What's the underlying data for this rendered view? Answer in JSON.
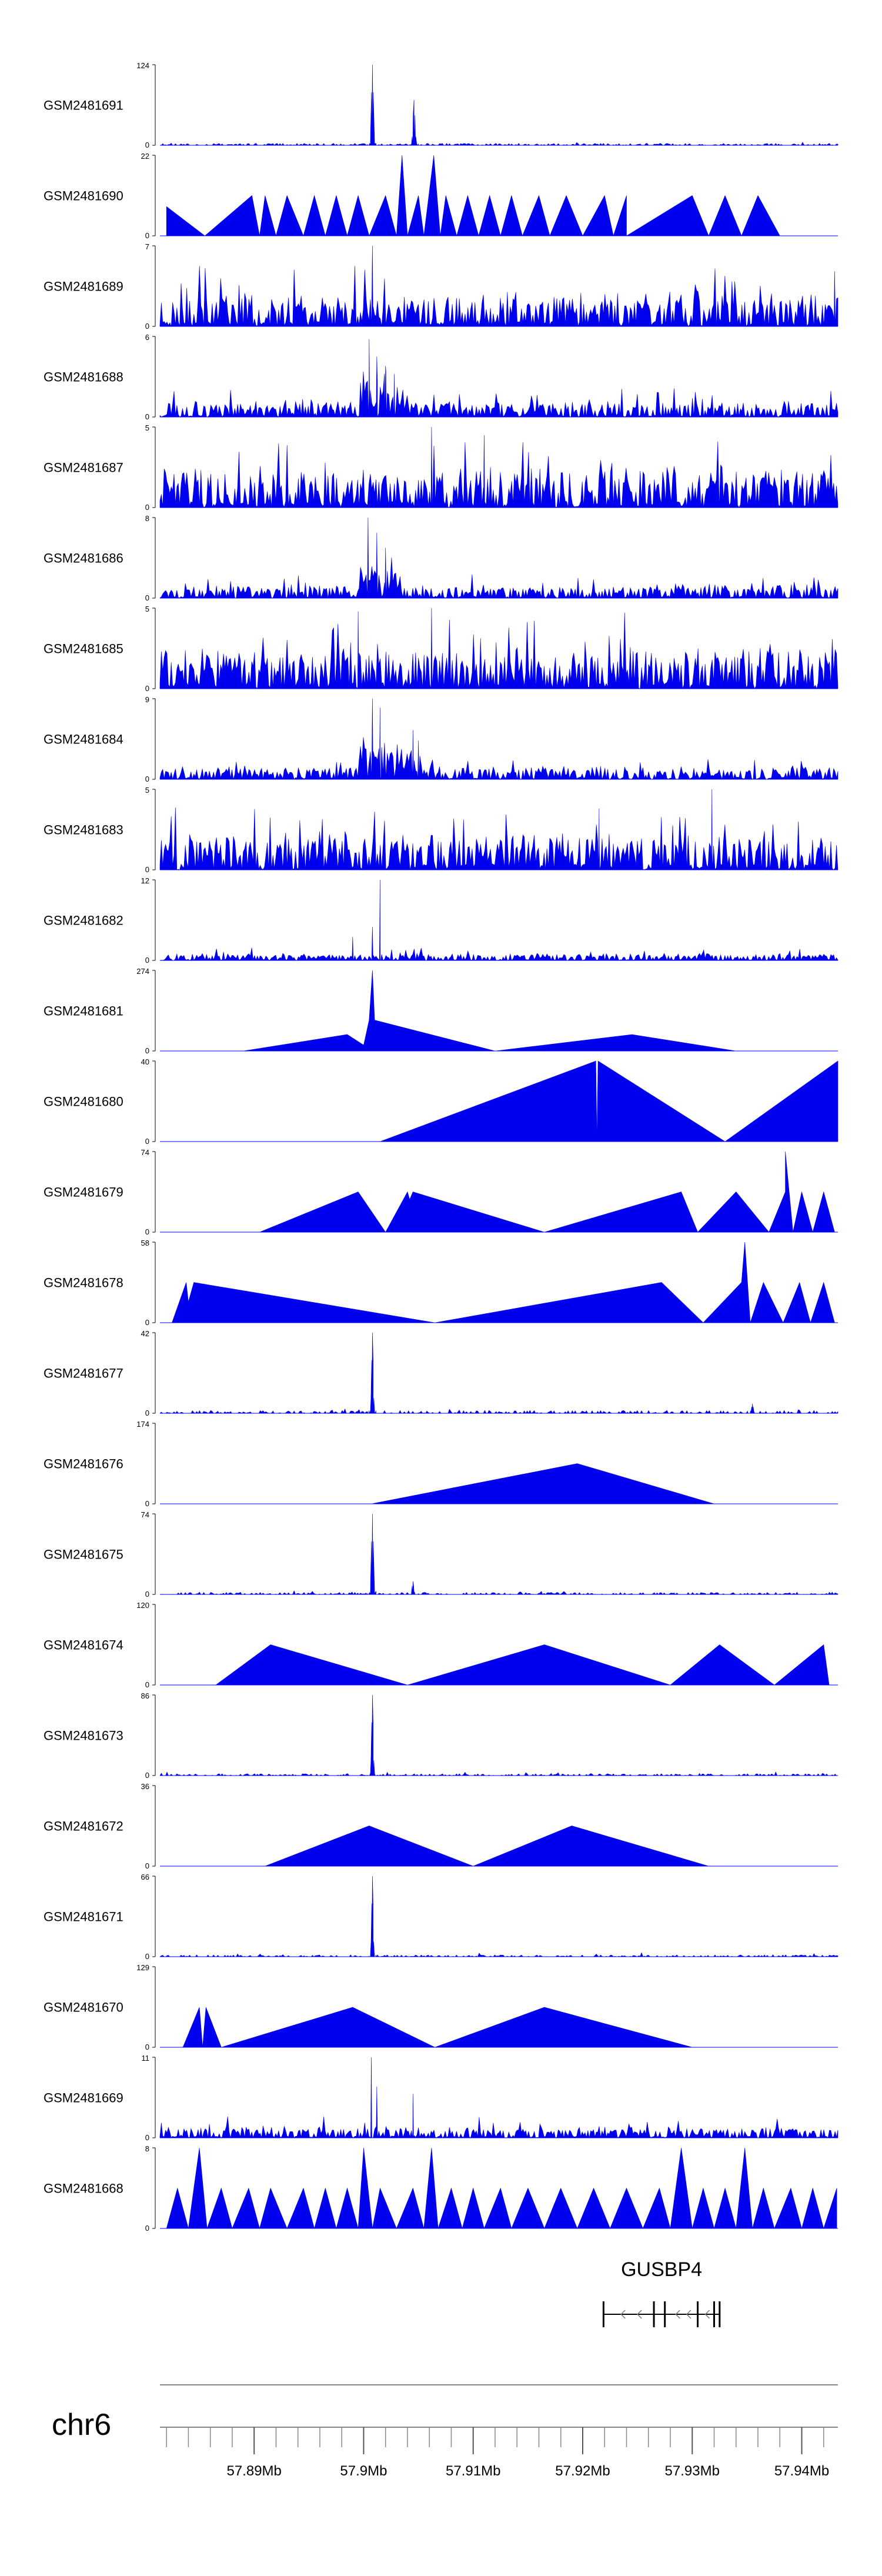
{
  "chart_data": {
    "type": "area",
    "chromosome": "chr6",
    "xlim": [
      57.8814,
      57.9433
    ],
    "x_ticks": [
      "57.89Mb",
      "57.9Mb",
      "57.91Mb",
      "57.92Mb",
      "57.93Mb",
      "57.94Mb"
    ],
    "x_tick_values": [
      57.89,
      57.9,
      57.91,
      57.92,
      57.93,
      57.94
    ],
    "colors": {
      "fill": "#0000ee",
      "axis": "#000000",
      "ideogram": "#888888"
    },
    "tracks": [
      {
        "name": "GSM2481691",
        "ymax": 124,
        "style": "peaks",
        "seed": 11,
        "base": 3,
        "noise": 1.5,
        "peaks": [
          [
            57.9008,
            124,
            0.00025
          ],
          [
            57.9046,
            70,
            0.00025
          ]
        ]
      },
      {
        "name": "GSM2481690",
        "ymax": 22,
        "style": "tri",
        "points": [
          [
            57.882,
            0
          ],
          [
            57.882,
            8
          ],
          [
            57.8855,
            0
          ],
          [
            57.8898,
            11
          ],
          [
            57.8905,
            0
          ],
          [
            57.891,
            11
          ],
          [
            57.892,
            0
          ],
          [
            57.893,
            11
          ],
          [
            57.8945,
            0
          ],
          [
            57.8955,
            11
          ],
          [
            57.8965,
            0
          ],
          [
            57.8975,
            11
          ],
          [
            57.8985,
            0
          ],
          [
            57.8995,
            11
          ],
          [
            57.9005,
            0
          ],
          [
            57.902,
            11
          ],
          [
            57.903,
            0
          ],
          [
            57.9035,
            22
          ],
          [
            57.904,
            0
          ],
          [
            57.905,
            11
          ],
          [
            57.9055,
            0
          ],
          [
            57.9064,
            22
          ],
          [
            57.907,
            0
          ],
          [
            57.9075,
            11
          ],
          [
            57.9085,
            0
          ],
          [
            57.9095,
            11
          ],
          [
            57.9105,
            0
          ],
          [
            57.9115,
            11
          ],
          [
            57.9125,
            0
          ],
          [
            57.9135,
            11
          ],
          [
            57.9145,
            0
          ],
          [
            57.916,
            11
          ],
          [
            57.917,
            0
          ],
          [
            57.9185,
            11
          ],
          [
            57.92,
            0
          ],
          [
            57.922,
            11
          ],
          [
            57.9228,
            0
          ],
          [
            57.924,
            11
          ],
          [
            57.924,
            0
          ],
          [
            57.93,
            11
          ],
          [
            57.9315,
            0
          ],
          [
            57.933,
            11
          ],
          [
            57.9345,
            0
          ],
          [
            57.936,
            11
          ],
          [
            57.938,
            0
          ],
          [
            57.943,
            0
          ]
        ]
      },
      {
        "name": "GSM2481689",
        "ymax": 7,
        "style": "noise",
        "seed": 23,
        "base": 1.6,
        "noise": 2.2,
        "spikes": [
          [
            57.9008,
            7
          ],
          [
            57.943,
            4.8
          ]
        ]
      },
      {
        "name": "GSM2481688",
        "ymax": 6,
        "style": "noise",
        "seed": 37,
        "base": 0.6,
        "noise": 1.0,
        "spikes": [
          [
            57.9005,
            5.8
          ],
          [
            57.9012,
            4.5
          ],
          [
            57.902,
            3.8
          ],
          [
            57.9028,
            3.2
          ]
        ],
        "cluster": [
          57.8995,
          57.904,
          2.5
        ]
      },
      {
        "name": "GSM2481687",
        "ymax": 5,
        "style": "noise",
        "seed": 41,
        "base": 1.4,
        "noise": 2.0,
        "spikes": [
          [
            57.9062,
            5
          ],
          [
            57.911,
            4.5
          ]
        ]
      },
      {
        "name": "GSM2481686",
        "ymax": 8,
        "style": "noise",
        "seed": 53,
        "base": 0.7,
        "noise": 1.1,
        "spikes": [
          [
            57.9004,
            8
          ],
          [
            57.9012,
            6.5
          ],
          [
            57.902,
            5
          ]
        ],
        "cluster": [
          57.8995,
          57.9035,
          3
        ]
      },
      {
        "name": "GSM2481685",
        "ymax": 5,
        "style": "noise",
        "seed": 61,
        "base": 1.4,
        "noise": 2.0,
        "spikes": [
          [
            57.8995,
            4.8
          ],
          [
            57.9062,
            5
          ]
        ]
      },
      {
        "name": "GSM2481684",
        "ymax": 9,
        "style": "noise",
        "seed": 71,
        "base": 0.8,
        "noise": 1.2,
        "spikes": [
          [
            57.9008,
            9
          ],
          [
            57.9015,
            8
          ],
          [
            57.9045,
            5.5
          ],
          [
            57.905,
            4
          ]
        ],
        "cluster": [
          57.8995,
          57.9055,
          3.5
        ]
      },
      {
        "name": "GSM2481683",
        "ymax": 5,
        "style": "noise",
        "seed": 83,
        "base": 1.3,
        "noise": 1.8,
        "spikes": [
          [
            57.9318,
            5
          ],
          [
            57.9215,
            3.8
          ]
        ]
      },
      {
        "name": "GSM2481682",
        "ymax": 12,
        "style": "noise",
        "seed": 97,
        "base": 0.5,
        "noise": 1.0,
        "spikes": [
          [
            57.9015,
            12
          ],
          [
            57.9008,
            5
          ],
          [
            57.899,
            3.5
          ]
        ]
      },
      {
        "name": "GSM2481681",
        "ymax": 274,
        "style": "tri",
        "points": [
          [
            57.889,
            0
          ],
          [
            57.8985,
            56
          ],
          [
            57.9,
            20
          ],
          [
            57.9005,
            105
          ],
          [
            57.9008,
            274
          ],
          [
            57.901,
            105
          ],
          [
            57.912,
            0
          ],
          [
            57.9245,
            56
          ],
          [
            57.934,
            0
          ]
        ]
      },
      {
        "name": "GSM2481680",
        "ymax": 40,
        "style": "tri",
        "points": [
          [
            57.9015,
            0
          ],
          [
            57.9212,
            40
          ],
          [
            57.9213,
            0
          ],
          [
            57.9214,
            40
          ],
          [
            57.933,
            0
          ],
          [
            57.9433,
            40
          ],
          [
            57.9433,
            0
          ]
        ]
      },
      {
        "name": "GSM2481679",
        "ymax": 74,
        "style": "tri",
        "points": [
          [
            57.8905,
            0
          ],
          [
            57.8995,
            37
          ],
          [
            57.902,
            0
          ],
          [
            57.904,
            37
          ],
          [
            57.9042,
            30
          ],
          [
            57.9045,
            37
          ],
          [
            57.9165,
            0
          ],
          [
            57.929,
            37
          ],
          [
            57.9305,
            0
          ],
          [
            57.934,
            37
          ],
          [
            57.937,
            0
          ],
          [
            57.9385,
            37
          ],
          [
            57.9385,
            74
          ],
          [
            57.9392,
            0
          ],
          [
            57.94,
            37
          ],
          [
            57.941,
            0
          ],
          [
            57.942,
            37
          ],
          [
            57.943,
            0
          ]
        ]
      },
      {
        "name": "GSM2481678",
        "ymax": 58,
        "style": "tri",
        "points": [
          [
            57.8825,
            0
          ],
          [
            57.8838,
            29
          ],
          [
            57.884,
            15
          ],
          [
            57.8845,
            29
          ],
          [
            57.9065,
            0
          ],
          [
            57.9272,
            29
          ],
          [
            57.931,
            0
          ],
          [
            57.9345,
            29
          ],
          [
            57.9348,
            58
          ],
          [
            57.9353,
            0
          ],
          [
            57.9365,
            29
          ],
          [
            57.9383,
            0
          ],
          [
            57.9398,
            29
          ],
          [
            57.9408,
            0
          ],
          [
            57.942,
            29
          ],
          [
            57.943,
            0
          ]
        ]
      },
      {
        "name": "GSM2481677",
        "ymax": 42,
        "style": "peaks",
        "seed": 101,
        "base": 1.5,
        "noise": 1.2,
        "peaks": [
          [
            57.9008,
            42,
            0.0002
          ],
          [
            57.9355,
            5,
            0.0002
          ]
        ]
      },
      {
        "name": "GSM2481676",
        "ymax": 174,
        "style": "tri",
        "points": [
          [
            57.9007,
            0
          ],
          [
            57.9195,
            87
          ],
          [
            57.932,
            0
          ]
        ]
      },
      {
        "name": "GSM2481675",
        "ymax": 74,
        "style": "peaks",
        "seed": 113,
        "base": 2,
        "noise": 1.5,
        "peaks": [
          [
            57.9008,
            74,
            0.00025
          ],
          [
            57.9045,
            12,
            0.0002
          ]
        ]
      },
      {
        "name": "GSM2481674",
        "ymax": 120,
        "style": "tri",
        "points": [
          [
            57.8865,
            0
          ],
          [
            57.8915,
            60
          ],
          [
            57.904,
            0
          ],
          [
            57.9165,
            60
          ],
          [
            57.928,
            0
          ],
          [
            57.9325,
            60
          ],
          [
            57.9375,
            0
          ],
          [
            57.942,
            60
          ],
          [
            57.9425,
            0
          ]
        ]
      },
      {
        "name": "GSM2481673",
        "ymax": 86,
        "style": "peaks",
        "seed": 127,
        "base": 2,
        "noise": 1.5,
        "peaks": [
          [
            57.9008,
            86,
            0.0002
          ]
        ]
      },
      {
        "name": "GSM2481672",
        "ymax": 36,
        "style": "tri",
        "points": [
          [
            57.891,
            0
          ],
          [
            57.9005,
            18
          ],
          [
            57.91,
            0
          ],
          [
            57.919,
            18
          ],
          [
            57.9315,
            0
          ]
        ]
      },
      {
        "name": "GSM2481671",
        "ymax": 66,
        "style": "peaks",
        "seed": 131,
        "base": 1.5,
        "noise": 1.2,
        "peaks": [
          [
            57.9008,
            66,
            0.00018
          ]
        ]
      },
      {
        "name": "GSM2481670",
        "ymax": 129,
        "style": "tri",
        "points": [
          [
            57.8835,
            0
          ],
          [
            57.885,
            64
          ],
          [
            57.8853,
            0
          ],
          [
            57.8856,
            64
          ],
          [
            57.887,
            0
          ],
          [
            57.899,
            64
          ],
          [
            57.9065,
            0
          ],
          [
            57.9165,
            64
          ],
          [
            57.93,
            0
          ]
        ]
      },
      {
        "name": "GSM2481669",
        "ymax": 11,
        "style": "noise",
        "seed": 139,
        "base": 0.8,
        "noise": 1.4,
        "spikes": [
          [
            57.9007,
            11
          ],
          [
            57.9012,
            7
          ],
          [
            57.9045,
            6
          ]
        ]
      },
      {
        "name": "GSM2481668",
        "ymax": 8,
        "style": "tri",
        "points": [
          [
            57.882,
            0
          ],
          [
            57.883,
            4
          ],
          [
            57.884,
            0
          ],
          [
            57.8845,
            4
          ],
          [
            57.885,
            8
          ],
          [
            57.8857,
            0
          ],
          [
            57.887,
            4
          ],
          [
            57.888,
            0
          ],
          [
            57.8895,
            4
          ],
          [
            57.8905,
            0
          ],
          [
            57.8915,
            4
          ],
          [
            57.893,
            0
          ],
          [
            57.8945,
            4
          ],
          [
            57.8955,
            0
          ],
          [
            57.8965,
            4
          ],
          [
            57.8975,
            0
          ],
          [
            57.8985,
            4
          ],
          [
            57.8995,
            0
          ],
          [
            57.9,
            8
          ],
          [
            57.9008,
            0
          ],
          [
            57.9015,
            4
          ],
          [
            57.903,
            0
          ],
          [
            57.9045,
            4
          ],
          [
            57.9055,
            0
          ],
          [
            57.9062,
            8
          ],
          [
            57.9068,
            0
          ],
          [
            57.908,
            4
          ],
          [
            57.909,
            0
          ],
          [
            57.91,
            4
          ],
          [
            57.911,
            0
          ],
          [
            57.9125,
            4
          ],
          [
            57.9135,
            0
          ],
          [
            57.915,
            4
          ],
          [
            57.9165,
            0
          ],
          [
            57.918,
            4
          ],
          [
            57.9195,
            0
          ],
          [
            57.921,
            4
          ],
          [
            57.9225,
            0
          ],
          [
            57.924,
            4
          ],
          [
            57.9255,
            0
          ],
          [
            57.927,
            4
          ],
          [
            57.928,
            0
          ],
          [
            57.929,
            8
          ],
          [
            57.93,
            0
          ],
          [
            57.931,
            4
          ],
          [
            57.932,
            0
          ],
          [
            57.933,
            4
          ],
          [
            57.934,
            0
          ],
          [
            57.9348,
            8
          ],
          [
            57.9355,
            0
          ],
          [
            57.9365,
            4
          ],
          [
            57.9375,
            0
          ],
          [
            57.939,
            4
          ],
          [
            57.94,
            0
          ],
          [
            57.941,
            4
          ],
          [
            57.942,
            0
          ],
          [
            57.9432,
            4
          ]
        ]
      }
    ],
    "gene": {
      "name": "GUSBP4",
      "strand": "-",
      "start": 57.9219,
      "end": 57.9325,
      "exons": [
        57.9219,
        57.9265,
        57.9275,
        57.9305,
        57.932,
        57.9325
      ]
    }
  }
}
